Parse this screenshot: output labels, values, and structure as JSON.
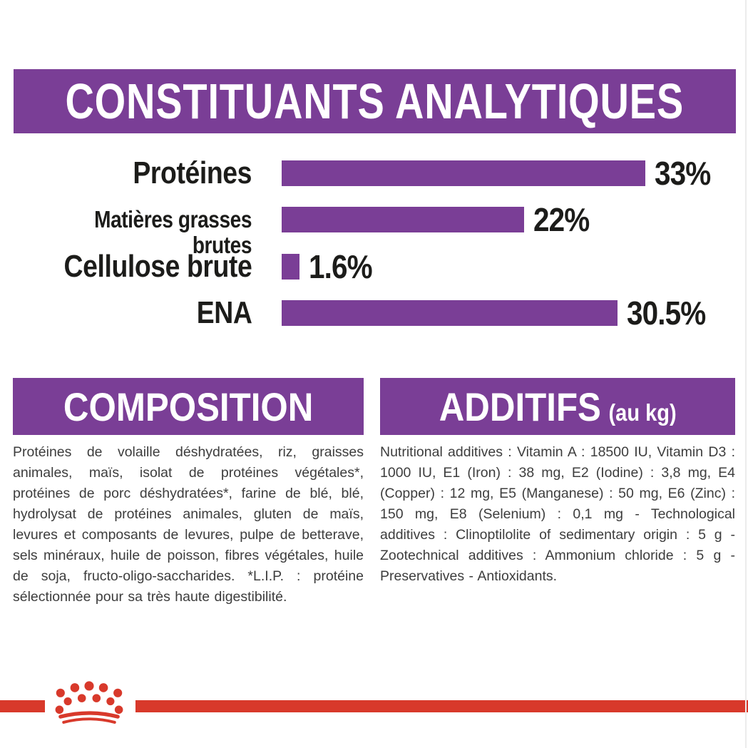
{
  "colors": {
    "purple": "#7a3e96",
    "red": "#d8392b",
    "heading_text": "#ffffff",
    "label_text": "#1c1c1a",
    "body_text": "#3d3d3d"
  },
  "chart_data": {
    "type": "bar",
    "orientation": "horizontal",
    "title": "CONSTITUANTS ANALYTIQUES",
    "categories": [
      "Protéines",
      "Matières grasses brutes",
      "Cellulose brute",
      "ENA"
    ],
    "values": [
      33,
      22,
      1.6,
      30.5
    ],
    "value_labels": [
      "33%",
      "22%",
      "1.6%",
      "30.5%"
    ],
    "xlim": [
      0,
      33
    ],
    "bar_color": "#7a3e96",
    "grid": false,
    "legend": false
  },
  "composition": {
    "title": "COMPOSITION",
    "body": "Protéines de volaille déshydratées, riz, graisses animales, maïs, isolat de protéines végétales*, protéines de porc déshydratées*, farine de blé, blé, hydrolysat de protéines animales, gluten de maïs, levures et composants de levures, pulpe de betterave, sels minéraux, huile de poisson, fibres végétales, huile de soja, fructo-oligo-saccharides. *L.I.P. : protéine sélectionnée pour sa très haute digestibilité."
  },
  "additives": {
    "title": "ADDITIFS",
    "unit_note": "(au kg)",
    "body": "Nutritional additives : Vitamin A : 18500 IU, Vitamin D3 : 1000 IU, E1 (Iron) : 38 mg, E2 (Iodine) : 3,8 mg, E4 (Copper) : 12 mg, E5 (Manganese) : 50 mg, E6 (Zinc) : 150 mg, E8 (Selenium) : 0,1 mg - Technological additives : Clinoptilolite of sedimentary origin : 5 g - Zootechnical additives : Ammonium chloride : 5 g - Preservatives - Antioxidants."
  },
  "footer": {
    "logo": "royal-canin-crown-logo"
  }
}
